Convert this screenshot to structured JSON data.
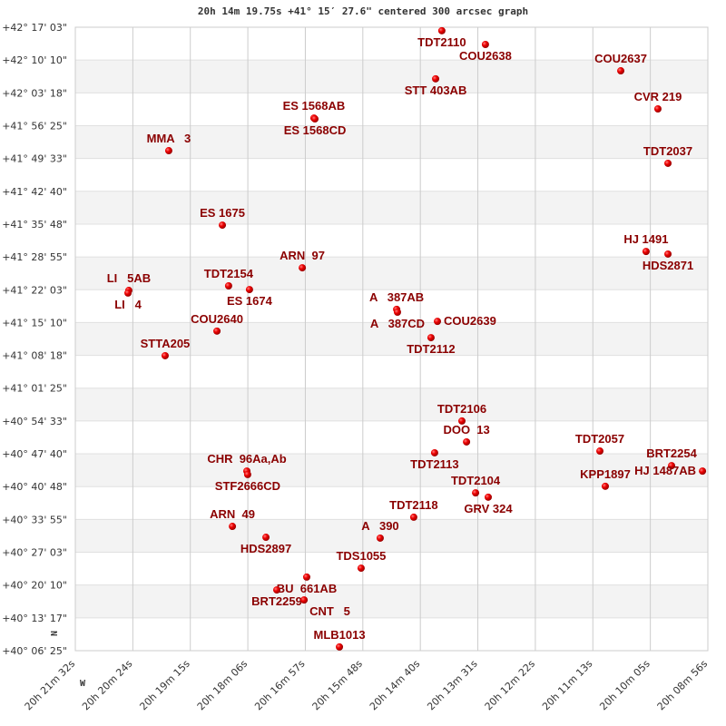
{
  "chart_data": {
    "type": "scatter",
    "title": "20h 14m 19.75s +41° 15′ 27.6\" centered 300 arcsec graph",
    "xlabel": "",
    "ylabel": "",
    "x_axis": "Right Ascension (degrees), decreasing to the right",
    "xlim_ra_deg": [
      305.3833,
      302.2333
    ],
    "ylim_dec_deg": [
      40.1069,
      42.2842
    ],
    "grid": true,
    "alternating_row_shading": true,
    "y_tick_labels": [
      "+42° 17' 03\"",
      "+42° 10' 10\"",
      "+42° 03' 18\"",
      "+41° 56' 25\"",
      "+41° 49' 33\"",
      "+41° 42' 40\"",
      "+41° 35' 48\"",
      "+41° 28' 55\"",
      "+41° 22' 03\"",
      "+41° 15' 10\"",
      "+41° 08' 18\"",
      "+41° 01' 25\"",
      "+40° 54' 33\"",
      "+40° 47' 40\"",
      "+40° 40' 48\"",
      "+40° 33' 55\"",
      "+40° 27' 03\"",
      "+40° 20' 10\"",
      "+40° 13' 17\"",
      "+40° 06' 25\""
    ],
    "x_tick_labels": [
      "20h 21m 32s",
      "20h 20m 24s",
      "20h 19m 15s",
      "20h 18m 06s",
      "20h 16m 57s",
      "20h 15m 48s",
      "20h 14m 40s",
      "20h 13m 31s",
      "20h 12m 22s",
      "20h 11m 13s",
      "20h 10m 05s",
      "20h 08m 56s"
    ],
    "compass": {
      "north": "N",
      "west": "W"
    },
    "colors": {
      "marker": "#dd0000",
      "label": "#8b0000",
      "grid": "#cccccc",
      "band": "#f3f3f3"
    },
    "points": [
      {
        "name": "TDT2110",
        "ra": 303.558,
        "dec": 42.272
      },
      {
        "name": "COU2638",
        "ra": 303.341,
        "dec": 42.224
      },
      {
        "name": "STT 403AB",
        "ra": 303.589,
        "dec": 42.104
      },
      {
        "name": "COU2637",
        "ra": 302.667,
        "dec": 42.132
      },
      {
        "name": "CVR 219",
        "ra": 302.482,
        "dec": 41.999
      },
      {
        "name": "TDT2037",
        "ra": 302.432,
        "dec": 41.809
      },
      {
        "name": "ES 1568AB",
        "ra": 304.195,
        "dec": 41.967
      },
      {
        "name": "ES 1568CD",
        "ra": 304.19,
        "dec": 41.964
      },
      {
        "name": "MMA   3",
        "ra": 304.918,
        "dec": 41.853
      },
      {
        "name": "ES 1675",
        "ra": 304.651,
        "dec": 41.593
      },
      {
        "name": "ARN  97",
        "ra": 304.253,
        "dec": 41.444
      },
      {
        "name": "TDT2154",
        "ra": 304.62,
        "dec": 41.381
      },
      {
        "name": "ES 1674",
        "ra": 304.516,
        "dec": 41.368
      },
      {
        "name": "LI   5AB",
        "ra": 305.117,
        "dec": 41.365
      },
      {
        "name": "LI   4",
        "ra": 305.121,
        "dec": 41.356
      },
      {
        "name": "A   387AB",
        "ra": 303.783,
        "dec": 41.299
      },
      {
        "name": "A   387CD",
        "ra": 303.779,
        "dec": 41.289
      },
      {
        "name": "COU2639",
        "ra": 303.58,
        "dec": 41.257
      },
      {
        "name": "TDT2112",
        "ra": 303.612,
        "dec": 41.2
      },
      {
        "name": "COU2640",
        "ra": 304.678,
        "dec": 41.223
      },
      {
        "name": "STTA205",
        "ra": 304.936,
        "dec": 41.137
      },
      {
        "name": "HJ 1491",
        "ra": 302.541,
        "dec": 41.501
      },
      {
        "name": "HDS2871",
        "ra": 302.432,
        "dec": 41.492
      },
      {
        "name": "TDT2106",
        "ra": 303.458,
        "dec": 40.909
      },
      {
        "name": "DOO  13",
        "ra": 303.435,
        "dec": 40.836
      },
      {
        "name": "TDT2113",
        "ra": 303.594,
        "dec": 40.798
      },
      {
        "name": "CHR  96Aa,Ab",
        "ra": 304.529,
        "dec": 40.734
      },
      {
        "name": "STF2666CD",
        "ra": 304.525,
        "dec": 40.722
      },
      {
        "name": "TDT2104",
        "ra": 303.39,
        "dec": 40.658
      },
      {
        "name": "GRV 324",
        "ra": 303.327,
        "dec": 40.643
      },
      {
        "name": "TDT2118",
        "ra": 303.698,
        "dec": 40.573
      },
      {
        "name": "ARN  49",
        "ra": 304.601,
        "dec": 40.541
      },
      {
        "name": "HDS2897",
        "ra": 304.434,
        "dec": 40.503
      },
      {
        "name": "A   390",
        "ra": 303.865,
        "dec": 40.5
      },
      {
        "name": "TDS1055",
        "ra": 303.96,
        "dec": 40.395
      },
      {
        "name": "BU  661AB",
        "ra": 304.231,
        "dec": 40.364
      },
      {
        "name": "BRT2259",
        "ra": 304.38,
        "dec": 40.319
      },
      {
        "name": "CNT   5",
        "ra": 304.244,
        "dec": 40.284
      },
      {
        "name": "MLB1013",
        "ra": 304.068,
        "dec": 40.12
      },
      {
        "name": "TDT2057",
        "ra": 302.771,
        "dec": 40.804
      },
      {
        "name": "KPP1897",
        "ra": 302.744,
        "dec": 40.681
      },
      {
        "name": "BRT2254",
        "ra": 302.414,
        "dec": 40.753
      },
      {
        "name": "HJ 1487AB",
        "ra": 302.26,
        "dec": 40.734
      }
    ]
  }
}
